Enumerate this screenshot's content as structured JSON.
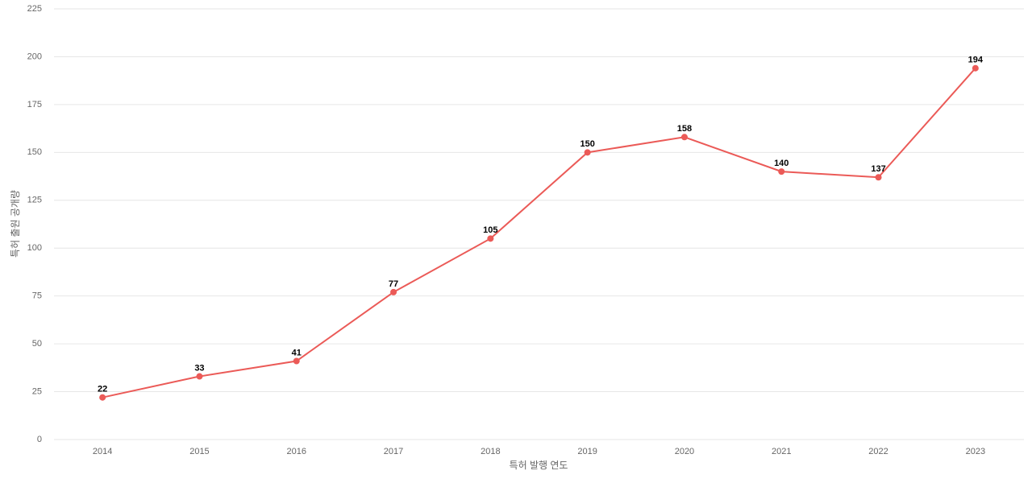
{
  "chart_data": {
    "type": "line",
    "x_label": "특허 발행 연도",
    "y_label": "특허 출원 공개량",
    "categories": [
      "2014",
      "2015",
      "2016",
      "2017",
      "2018",
      "2019",
      "2020",
      "2021",
      "2022",
      "2023"
    ],
    "values": [
      22,
      33,
      41,
      77,
      105,
      150,
      158,
      140,
      137,
      194
    ],
    "color": "#eb5a57",
    "ylim": [
      0,
      225
    ],
    "yticks": [
      0,
      25,
      50,
      75,
      100,
      125,
      150,
      175,
      200,
      225
    ],
    "grid": true
  }
}
